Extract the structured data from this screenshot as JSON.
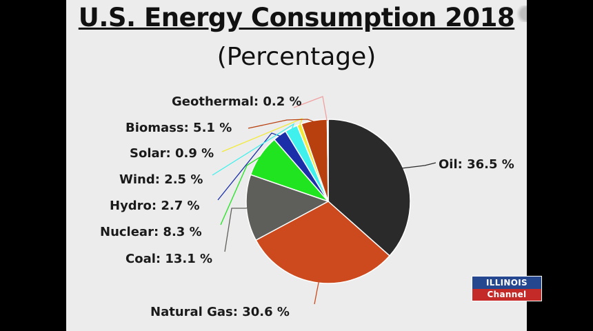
{
  "slide": {
    "title": "U.S. Energy Consumption 2018",
    "subtitle": "(Percentage)"
  },
  "logo": {
    "line1": "ILLINOIS",
    "line2": "Channel"
  },
  "chart_data": {
    "type": "pie",
    "title": "U.S. Energy Consumption 2018",
    "subtitle": "(Percentage)",
    "unit": "%",
    "slices": [
      {
        "name": "Oil",
        "value": 36.5,
        "color": "#2a2a2a",
        "label": "Oil: 36.5 %"
      },
      {
        "name": "Natural Gas",
        "value": 30.6,
        "color": "#cc4a1e",
        "label": "Natural Gas: 30.6 %"
      },
      {
        "name": "Coal",
        "value": 13.1,
        "color": "#5e5e5a",
        "label": "Coal: 13.1 %"
      },
      {
        "name": "Nuclear",
        "value": 8.3,
        "color": "#1fe41f",
        "label": "Nuclear: 8.3 %"
      },
      {
        "name": "Hydro",
        "value": 2.7,
        "color": "#1a2fa8",
        "label": "Hydro: 2.7 %"
      },
      {
        "name": "Wind",
        "value": 2.5,
        "color": "#3ff0ec",
        "label": "Wind: 2.5 %"
      },
      {
        "name": "Solar",
        "value": 0.9,
        "color": "#f2ea38",
        "label": "Solar: 0.9 %"
      },
      {
        "name": "Biomass",
        "value": 5.1,
        "color": "#b8400f",
        "label": "Biomass: 5.1 %"
      },
      {
        "name": "Geothermal",
        "value": 0.2,
        "color": "#f0a0a0",
        "label": "Geothermal: 0.2 %"
      }
    ]
  }
}
